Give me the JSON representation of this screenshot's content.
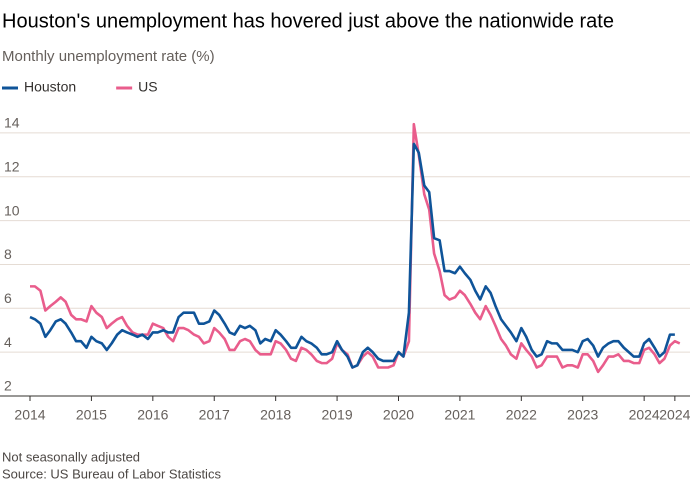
{
  "chart_data": {
    "type": "line",
    "title": "Houston's unemployment has hovered just above the nationwide rate",
    "subtitle": "Monthly unemployment rate (%)",
    "note": "Not seasonally adjusted",
    "source": "Source: US Bureau of Labor Statistics",
    "x": [
      2014.0,
      2014.08,
      2014.17,
      2014.25,
      2014.33,
      2014.42,
      2014.5,
      2014.58,
      2014.67,
      2014.75,
      2014.83,
      2014.92,
      2015.0,
      2015.08,
      2015.17,
      2015.25,
      2015.33,
      2015.42,
      2015.5,
      2015.58,
      2015.67,
      2015.75,
      2015.83,
      2015.92,
      2016.0,
      2016.08,
      2016.17,
      2016.25,
      2016.33,
      2016.42,
      2016.5,
      2016.58,
      2016.67,
      2016.75,
      2016.83,
      2016.92,
      2017.0,
      2017.08,
      2017.17,
      2017.25,
      2017.33,
      2017.42,
      2017.5,
      2017.58,
      2017.67,
      2017.75,
      2017.83,
      2017.92,
      2018.0,
      2018.08,
      2018.17,
      2018.25,
      2018.33,
      2018.42,
      2018.5,
      2018.58,
      2018.67,
      2018.75,
      2018.83,
      2018.92,
      2019.0,
      2019.08,
      2019.17,
      2019.25,
      2019.33,
      2019.42,
      2019.5,
      2019.58,
      2019.67,
      2019.75,
      2019.83,
      2019.92,
      2020.0,
      2020.08,
      2020.17,
      2020.25,
      2020.33,
      2020.42,
      2020.5,
      2020.58,
      2020.67,
      2020.75,
      2020.83,
      2020.92,
      2021.0,
      2021.08,
      2021.17,
      2021.25,
      2021.33,
      2021.42,
      2021.5,
      2021.58,
      2021.67,
      2021.75,
      2021.83,
      2021.92,
      2022.0,
      2022.08,
      2022.17,
      2022.25,
      2022.33,
      2022.42,
      2022.5,
      2022.58,
      2022.67,
      2022.75,
      2022.83,
      2022.92,
      2023.0,
      2023.08,
      2023.17,
      2023.25,
      2023.33,
      2023.42,
      2023.5,
      2023.58,
      2023.67,
      2023.75,
      2023.83,
      2023.92,
      2024.0,
      2024.08,
      2024.17,
      2024.25,
      2024.33,
      2024.42,
      2024.5,
      2024.58
    ],
    "series": [
      {
        "name": "Houston",
        "color": "#0f5499",
        "values": [
          5.6,
          5.5,
          5.3,
          4.7,
          5.0,
          5.4,
          5.5,
          5.3,
          4.9,
          4.5,
          4.5,
          4.2,
          4.7,
          4.5,
          4.4,
          4.1,
          4.4,
          4.8,
          5.0,
          4.9,
          4.8,
          4.7,
          4.8,
          4.6,
          4.9,
          4.9,
          5.0,
          4.9,
          4.9,
          5.6,
          5.8,
          5.8,
          5.8,
          5.3,
          5.3,
          5.4,
          5.9,
          5.7,
          5.3,
          4.9,
          4.8,
          5.2,
          5.1,
          5.2,
          5.0,
          4.4,
          4.6,
          4.5,
          5.0,
          4.8,
          4.5,
          4.2,
          4.2,
          4.7,
          4.5,
          4.4,
          4.2,
          3.9,
          3.9,
          4.0,
          4.5,
          4.1,
          3.8,
          3.3,
          3.4,
          4.0,
          4.2,
          4.0,
          3.7,
          3.6,
          3.6,
          3.6,
          4.0,
          3.8,
          5.8,
          13.5,
          13.1,
          11.6,
          11.3,
          9.2,
          9.1,
          7.7,
          7.7,
          7.6,
          7.9,
          7.6,
          7.3,
          6.8,
          6.4,
          7.0,
          6.7,
          6.1,
          5.5,
          5.2,
          4.9,
          4.5,
          5.1,
          4.7,
          4.1,
          3.8,
          3.9,
          4.5,
          4.4,
          4.4,
          4.1,
          4.1,
          4.1,
          4.0,
          4.5,
          4.6,
          4.3,
          3.8,
          4.2,
          4.4,
          4.5,
          4.5,
          4.2,
          4.0,
          3.8,
          3.8,
          4.4,
          4.6,
          4.2,
          3.8,
          4.0,
          4.8,
          4.8,
          null
        ]
      },
      {
        "name": "US",
        "color": "#e95d8c",
        "values": [
          7.0,
          7.0,
          6.8,
          5.9,
          6.1,
          6.3,
          6.5,
          6.3,
          5.7,
          5.5,
          5.5,
          5.4,
          6.1,
          5.8,
          5.6,
          5.1,
          5.3,
          5.5,
          5.6,
          5.2,
          4.9,
          4.8,
          4.8,
          4.8,
          5.3,
          5.2,
          5.1,
          4.7,
          4.5,
          5.1,
          5.1,
          5.0,
          4.8,
          4.7,
          4.4,
          4.5,
          5.1,
          4.9,
          4.6,
          4.1,
          4.1,
          4.5,
          4.6,
          4.5,
          4.1,
          3.9,
          3.9,
          3.9,
          4.5,
          4.4,
          4.1,
          3.7,
          3.6,
          4.2,
          4.1,
          3.9,
          3.6,
          3.5,
          3.5,
          3.7,
          4.4,
          4.1,
          3.9,
          3.3,
          3.4,
          3.8,
          4.0,
          3.8,
          3.3,
          3.3,
          3.3,
          3.4,
          4.0,
          3.8,
          4.5,
          14.4,
          13.0,
          11.2,
          10.5,
          8.5,
          7.7,
          6.6,
          6.4,
          6.5,
          6.8,
          6.6,
          6.2,
          5.8,
          5.5,
          6.1,
          5.7,
          5.2,
          4.6,
          4.3,
          3.9,
          3.7,
          4.4,
          4.1,
          3.8,
          3.3,
          3.4,
          3.8,
          3.8,
          3.8,
          3.3,
          3.4,
          3.4,
          3.3,
          3.9,
          3.9,
          3.6,
          3.1,
          3.4,
          3.8,
          3.8,
          3.9,
          3.6,
          3.6,
          3.5,
          3.5,
          4.1,
          4.2,
          3.9,
          3.5,
          3.7,
          4.3,
          4.5,
          4.4
        ]
      }
    ],
    "xlim": [
      2014,
      2024.6
    ],
    "ylim": [
      2,
      15
    ],
    "xticks": [
      2014,
      2015,
      2016,
      2017,
      2018,
      2019,
      2020,
      2021,
      2022,
      2023,
      2024,
      {
        "value": 2024.5,
        "label": "2024"
      }
    ],
    "yticks": [
      2,
      4,
      6,
      8,
      10,
      12,
      14
    ],
    "grid": true,
    "legend": "top-left"
  }
}
